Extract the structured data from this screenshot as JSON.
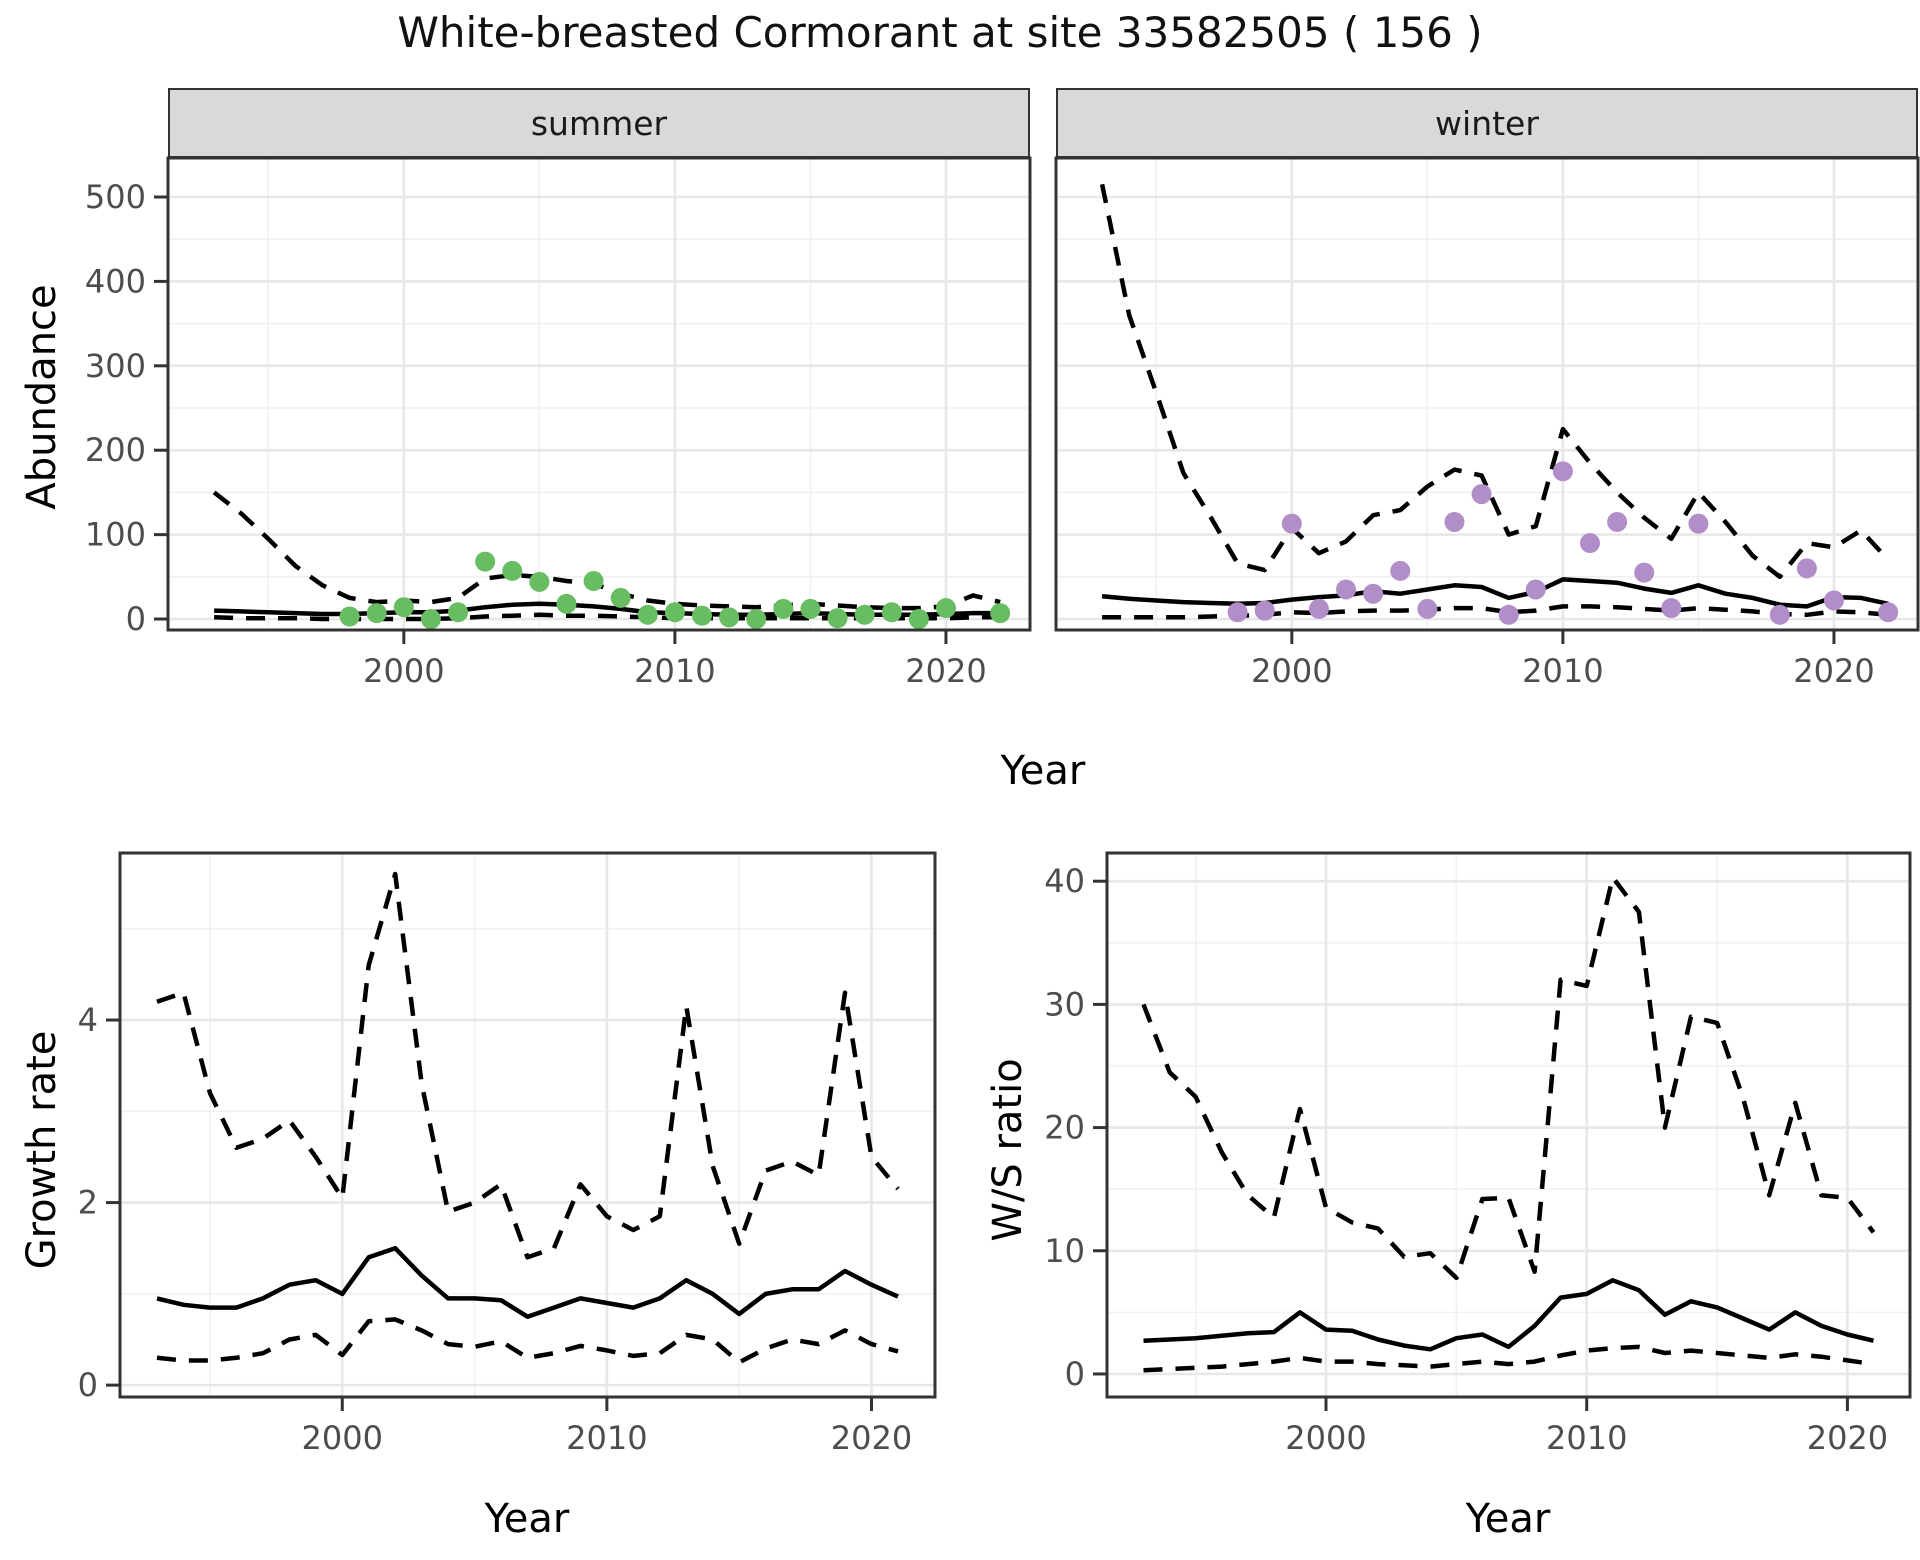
{
  "title": "White-breasted Cormorant at site 33582505 ( 156 )",
  "top": {
    "ylabel": "Abundance",
    "xlabel": "Year",
    "facets": [
      "summer",
      "winter"
    ]
  },
  "bottom_left": {
    "ylabel": "Growth rate",
    "xlabel": "Year"
  },
  "bottom_right": {
    "ylabel": "W/S ratio",
    "xlabel": "Year"
  },
  "colors": {
    "summer_point": "#68bd62",
    "winter_point": "#b28ec8",
    "line": "#000000",
    "grid_major": "#e7e7e7",
    "grid_minor": "#f1f1f1",
    "panel_border": "#333333",
    "tick_label": "#4d4d4d",
    "strip_fill": "#d9d9d9"
  },
  "chart_data": [
    {
      "id": "abundance-summer",
      "type": "line",
      "facet": "summer",
      "xlabel": "Year",
      "ylabel": "Abundance",
      "xlim": [
        1991.3,
        2023.1
      ],
      "ylim": [
        -13,
        546.2
      ],
      "xticks": [
        2000,
        2010,
        2020
      ],
      "xminor": [
        1995,
        2005,
        2015
      ],
      "yticks": [
        0,
        100,
        200,
        300,
        400,
        500
      ],
      "yminor": [
        50,
        150,
        250,
        350,
        450
      ],
      "x": [
        1993,
        1994,
        1995,
        1996,
        1997,
        1998,
        1999,
        2000,
        2001,
        2002,
        2003,
        2004,
        2005,
        2006,
        2007,
        2008,
        2009,
        2010,
        2011,
        2012,
        2013,
        2014,
        2015,
        2016,
        2017,
        2018,
        2019,
        2020,
        2021,
        2022
      ],
      "series": [
        {
          "name": "fit",
          "style": "solid",
          "values": [
            10,
            9,
            8,
            7,
            6,
            6,
            7,
            8,
            8,
            10,
            14,
            17,
            18,
            17,
            15,
            12,
            8,
            7,
            6,
            5,
            5,
            6,
            7,
            6,
            5,
            5,
            5,
            6,
            7,
            7
          ]
        },
        {
          "name": "upper-ci",
          "style": "dashed",
          "values": [
            150,
            125,
            95,
            63,
            40,
            25,
            20,
            22,
            20,
            25,
            48,
            52,
            50,
            45,
            42,
            30,
            22,
            18,
            16,
            15,
            14,
            16,
            18,
            16,
            14,
            13,
            13,
            15,
            28,
            20
          ]
        },
        {
          "name": "lower-ci",
          "style": "dashed",
          "values": [
            2,
            1,
            1,
            1,
            0,
            0,
            0,
            0,
            0,
            1,
            3,
            4,
            5,
            4,
            4,
            3,
            2,
            1,
            1,
            1,
            1,
            1,
            1,
            1,
            1,
            1,
            1,
            1,
            2,
            2
          ]
        }
      ],
      "points": {
        "name": "observed-summer",
        "color": "#68bd62",
        "data": [
          [
            1998,
            3
          ],
          [
            1999,
            7
          ],
          [
            2000,
            14
          ],
          [
            2001,
            0
          ],
          [
            2002,
            8
          ],
          [
            2003,
            68
          ],
          [
            2004,
            57
          ],
          [
            2005,
            44
          ],
          [
            2006,
            18
          ],
          [
            2007,
            45
          ],
          [
            2008,
            25
          ],
          [
            2009,
            5
          ],
          [
            2010,
            8
          ],
          [
            2011,
            4
          ],
          [
            2012,
            2
          ],
          [
            2013,
            0
          ],
          [
            2014,
            12
          ],
          [
            2015,
            12
          ],
          [
            2016,
            1
          ],
          [
            2017,
            5
          ],
          [
            2018,
            8
          ],
          [
            2019,
            0
          ],
          [
            2020,
            13
          ],
          [
            2022,
            7
          ]
        ]
      }
    },
    {
      "id": "abundance-winter",
      "type": "line",
      "facet": "winter",
      "xlabel": "Year",
      "ylabel": "Abundance",
      "xlim": [
        1991.3,
        2023.1
      ],
      "ylim": [
        -13,
        546.2
      ],
      "xticks": [
        2000,
        2010,
        2020
      ],
      "xminor": [
        1995,
        2005,
        2015
      ],
      "yticks": [
        0,
        100,
        200,
        300,
        400,
        500
      ],
      "yminor": [
        50,
        150,
        250,
        350,
        450
      ],
      "x": [
        1993,
        1994,
        1995,
        1996,
        1997,
        1998,
        1999,
        2000,
        2001,
        2002,
        2003,
        2004,
        2005,
        2006,
        2007,
        2008,
        2009,
        2010,
        2011,
        2012,
        2013,
        2014,
        2015,
        2016,
        2017,
        2018,
        2019,
        2020,
        2021,
        2022
      ],
      "series": [
        {
          "name": "fit",
          "style": "solid",
          "values": [
            27,
            24,
            22,
            20,
            19,
            18,
            19,
            23,
            26,
            28,
            33,
            30,
            35,
            40,
            38,
            25,
            32,
            47,
            45,
            43,
            36,
            31,
            40,
            30,
            25,
            17,
            15,
            26,
            25,
            18
          ]
        },
        {
          "name": "upper-ci",
          "style": "dashed",
          "values": [
            515,
            360,
            268,
            173,
            121,
            66,
            58,
            108,
            78,
            92,
            123,
            129,
            157,
            177,
            170,
            100,
            110,
            225,
            185,
            150,
            120,
            95,
            150,
            115,
            75,
            50,
            90,
            85,
            105,
            70
          ]
        },
        {
          "name": "lower-ci",
          "style": "dashed",
          "values": [
            2,
            2,
            2,
            2,
            3,
            4,
            5,
            8,
            7,
            9,
            10,
            10,
            11,
            13,
            13,
            8,
            10,
            15,
            15,
            14,
            12,
            10,
            13,
            11,
            9,
            6,
            5,
            9,
            8,
            5
          ]
        }
      ],
      "points": {
        "name": "observed-winter",
        "color": "#b28ec8",
        "data": [
          [
            1998,
            8
          ],
          [
            1999,
            10
          ],
          [
            2000,
            113
          ],
          [
            2001,
            12
          ],
          [
            2002,
            35
          ],
          [
            2003,
            30
          ],
          [
            2004,
            57
          ],
          [
            2005,
            12
          ],
          [
            2006,
            115
          ],
          [
            2007,
            148
          ],
          [
            2008,
            5
          ],
          [
            2009,
            35
          ],
          [
            2010,
            175
          ],
          [
            2011,
            90
          ],
          [
            2012,
            115
          ],
          [
            2013,
            55
          ],
          [
            2014,
            13
          ],
          [
            2015,
            113
          ],
          [
            2018,
            5
          ],
          [
            2019,
            60
          ],
          [
            2020,
            22
          ],
          [
            2022,
            8
          ]
        ]
      }
    },
    {
      "id": "growth-rate",
      "type": "line",
      "xlabel": "Year",
      "ylabel": "Growth rate",
      "xlim": [
        1991.6,
        2022.4
      ],
      "ylim": [
        -0.13,
        5.83
      ],
      "xticks": [
        2000,
        2010,
        2020
      ],
      "xminor": [
        1995,
        2005,
        2015
      ],
      "yticks": [
        0,
        2,
        4
      ],
      "yminor": [
        1,
        3,
        5
      ],
      "x": [
        1993,
        1994,
        1995,
        1996,
        1997,
        1998,
        1999,
        2000,
        2001,
        2002,
        2003,
        2004,
        2005,
        2006,
        2007,
        2008,
        2009,
        2010,
        2011,
        2012,
        2013,
        2014,
        2015,
        2016,
        2017,
        2018,
        2019,
        2020,
        2021
      ],
      "series": [
        {
          "name": "fit",
          "style": "solid",
          "values": [
            0.95,
            0.88,
            0.85,
            0.85,
            0.95,
            1.1,
            1.15,
            1.0,
            1.4,
            1.5,
            1.2,
            0.95,
            0.95,
            0.93,
            0.75,
            0.85,
            0.95,
            0.9,
            0.85,
            0.95,
            1.15,
            1.0,
            0.78,
            1.0,
            1.05,
            1.05,
            1.25,
            1.1,
            0.97
          ]
        },
        {
          "name": "upper-ci",
          "style": "dashed",
          "values": [
            4.2,
            4.3,
            3.2,
            2.6,
            2.7,
            2.9,
            2.5,
            2.05,
            4.6,
            5.6,
            3.3,
            1.9,
            2.0,
            2.2,
            1.4,
            1.5,
            2.2,
            1.85,
            1.7,
            1.85,
            4.15,
            2.4,
            1.55,
            2.35,
            2.45,
            2.3,
            4.3,
            2.5,
            2.15
          ]
        },
        {
          "name": "lower-ci",
          "style": "dashed",
          "values": [
            0.3,
            0.27,
            0.27,
            0.3,
            0.35,
            0.5,
            0.55,
            0.33,
            0.7,
            0.72,
            0.6,
            0.45,
            0.42,
            0.48,
            0.3,
            0.35,
            0.43,
            0.38,
            0.32,
            0.35,
            0.55,
            0.5,
            0.25,
            0.4,
            0.5,
            0.45,
            0.6,
            0.45,
            0.37
          ]
        }
      ]
    },
    {
      "id": "ws-ratio",
      "type": "line",
      "xlabel": "Year",
      "ylabel": "W/S ratio",
      "xlim": [
        1991.6,
        2022.4
      ],
      "ylim": [
        -1.87,
        42.29
      ],
      "xticks": [
        2000,
        2010,
        2020
      ],
      "xminor": [
        1995,
        2005,
        2015
      ],
      "yticks": [
        0,
        10,
        20,
        30,
        40
      ],
      "yminor": [
        5,
        15,
        25,
        35
      ],
      "x": [
        1993,
        1994,
        1995,
        1996,
        1997,
        1998,
        1999,
        2000,
        2001,
        2002,
        2003,
        2004,
        2005,
        2006,
        2007,
        2008,
        2009,
        2010,
        2011,
        2012,
        2013,
        2014,
        2015,
        2016,
        2017,
        2018,
        2019,
        2020,
        2021
      ],
      "series": [
        {
          "name": "fit",
          "style": "solid",
          "values": [
            2.7,
            2.8,
            2.9,
            3.1,
            3.3,
            3.4,
            5.0,
            3.6,
            3.5,
            2.8,
            2.3,
            2.0,
            2.9,
            3.2,
            2.2,
            3.9,
            6.2,
            6.5,
            7.6,
            6.8,
            4.8,
            5.9,
            5.4,
            4.5,
            3.6,
            5.0,
            3.9,
            3.2,
            2.7
          ]
        },
        {
          "name": "upper-ci",
          "style": "dashed",
          "values": [
            30,
            24.5,
            22.5,
            18,
            14.5,
            12.7,
            21.5,
            13.5,
            12.3,
            11.8,
            9.5,
            9.8,
            7.8,
            14.2,
            14.3,
            8.3,
            32,
            31.5,
            40.3,
            37.5,
            20,
            29,
            28.5,
            22.4,
            14.5,
            22,
            14.5,
            14.3,
            11.5
          ]
        },
        {
          "name": "lower-ci",
          "style": "dashed",
          "values": [
            0.3,
            0.4,
            0.5,
            0.6,
            0.8,
            1.0,
            1.3,
            1.0,
            1.0,
            0.8,
            0.7,
            0.6,
            0.8,
            1.0,
            0.8,
            1.0,
            1.5,
            1.9,
            2.1,
            2.2,
            1.7,
            1.9,
            1.7,
            1.5,
            1.3,
            1.6,
            1.4,
            1.1,
            0.8
          ]
        }
      ]
    }
  ]
}
